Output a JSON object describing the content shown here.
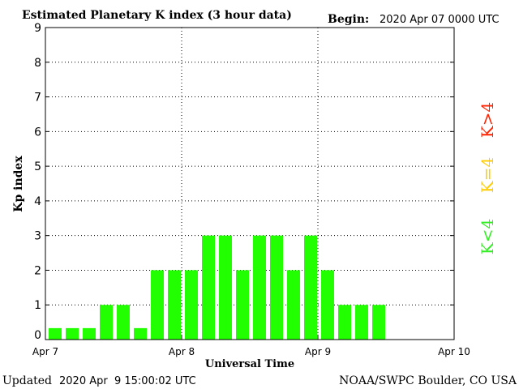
{
  "chart_data": {
    "type": "bar",
    "title": "Estimated Planetary K index (3 hour data)",
    "begin_label": "Begin:",
    "begin_value": "2020 Apr 07 0000 UTC",
    "xlabel": "Universal Time",
    "ylabel": "Kp index",
    "ylim": [
      0,
      9
    ],
    "y_ticks": [
      "0",
      "1",
      "2",
      "3",
      "4",
      "5",
      "6",
      "7",
      "8",
      "9"
    ],
    "x_ticks": [
      "Apr 7",
      "Apr 8",
      "Apr 9",
      "Apr 10"
    ],
    "grid": true,
    "bar_interval_hours": 3,
    "values": [
      0.33,
      0.33,
      0.33,
      1,
      1,
      0.33,
      2,
      2,
      2,
      3,
      3,
      2,
      3,
      3,
      2,
      3,
      2,
      1,
      1,
      1
    ],
    "bar_color": "#22ff00",
    "legend": [
      {
        "label": "K<4",
        "color": "#33ee22"
      },
      {
        "label": "K=4",
        "color": "#ffcc00"
      },
      {
        "label": "K>4",
        "color": "#ff2200"
      }
    ]
  },
  "footer": {
    "updated_label": "Updated",
    "updated_value": "2020 Apr  9 15:00:02 UTC",
    "source": "NOAA/SWPC Boulder, CO USA"
  }
}
